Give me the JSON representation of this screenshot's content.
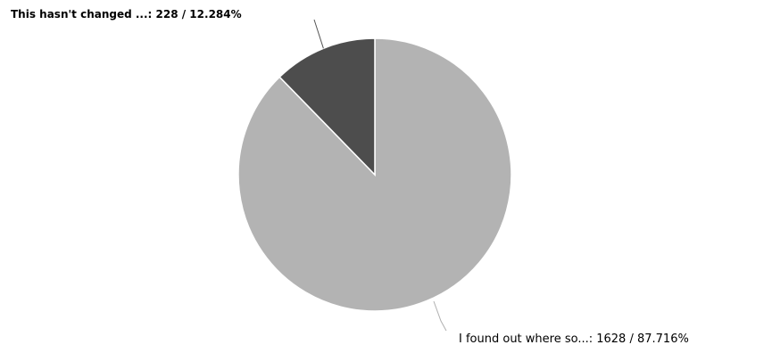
{
  "chart_data": {
    "type": "pie",
    "title": "",
    "slices": [
      {
        "label": "I found out where so...: 1628 / 87.716%",
        "value": 1628,
        "percent": 87.716,
        "color": "#b3b3b3"
      },
      {
        "label": "This hasn't changed ...: 228 / 12.284%",
        "value": 228,
        "percent": 12.284,
        "color": "#4d4d4d"
      }
    ],
    "start_angle_deg": 0,
    "direction": "clockwise",
    "slice_border_color": "#ffffff",
    "leader_line_color": "#b0b0b0"
  }
}
